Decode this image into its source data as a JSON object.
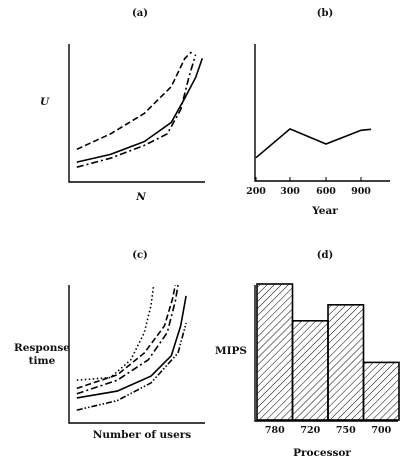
{
  "chart_data": [
    {
      "panel": "(a)",
      "type": "line",
      "xlabel": "N",
      "ylabel": "U",
      "xlim": [
        0,
        1
      ],
      "ylim": [
        0,
        1
      ],
      "series": [
        {
          "style": "dashed",
          "x": [
            0.05,
            0.3,
            0.55,
            0.75,
            0.85,
            0.9
          ],
          "y": [
            0.24,
            0.36,
            0.52,
            0.73,
            0.95,
            1.0
          ]
        },
        {
          "style": "solid",
          "x": [
            0.05,
            0.3,
            0.55,
            0.75,
            0.85,
            0.93,
            0.98
          ],
          "y": [
            0.14,
            0.2,
            0.3,
            0.45,
            0.64,
            0.8,
            0.95
          ]
        },
        {
          "style": "dashdot",
          "x": [
            0.05,
            0.3,
            0.55,
            0.72,
            0.82,
            0.88,
            0.93
          ],
          "y": [
            0.1,
            0.17,
            0.27,
            0.36,
            0.55,
            0.8,
            0.98
          ]
        }
      ]
    },
    {
      "panel": "(b)",
      "type": "line",
      "xlabel": "Year",
      "ylabel": "",
      "categories": [
        "200",
        "300",
        "600",
        "900"
      ],
      "series": [
        {
          "style": "solid",
          "values": [
            0.17,
            0.38,
            0.27,
            0.37
          ]
        }
      ],
      "ylim": [
        0,
        1
      ]
    },
    {
      "panel": "(c)",
      "type": "line",
      "xlabel": "Number of users",
      "ylabel": "Response time",
      "xlim": [
        0,
        1
      ],
      "ylim": [
        0,
        1
      ],
      "series": [
        {
          "style": "dotted",
          "x": [
            0.05,
            0.3,
            0.45,
            0.55,
            0.6,
            0.62
          ],
          "y": [
            0.3,
            0.32,
            0.45,
            0.65,
            0.85,
            1.0
          ]
        },
        {
          "style": "dashed",
          "x": [
            0.05,
            0.35,
            0.55,
            0.7,
            0.76,
            0.78
          ],
          "y": [
            0.24,
            0.34,
            0.5,
            0.7,
            0.9,
            1.0
          ]
        },
        {
          "style": "dashdot",
          "x": [
            0.05,
            0.35,
            0.58,
            0.72,
            0.78,
            0.8
          ],
          "y": [
            0.2,
            0.3,
            0.45,
            0.65,
            0.88,
            1.0
          ]
        },
        {
          "style": "solid",
          "x": [
            0.05,
            0.35,
            0.6,
            0.75,
            0.82,
            0.86
          ],
          "y": [
            0.17,
            0.22,
            0.33,
            0.48,
            0.7,
            0.92
          ]
        },
        {
          "style": "dashdotdot",
          "x": [
            0.05,
            0.35,
            0.6,
            0.8,
            0.86
          ],
          "y": [
            0.08,
            0.15,
            0.28,
            0.5,
            0.72
          ]
        }
      ]
    },
    {
      "panel": "(d)",
      "type": "bar",
      "xlabel": "Processor",
      "ylabel": "MIPS",
      "categories": [
        "780",
        "720",
        "750",
        "700"
      ],
      "values": [
        0.85,
        0.62,
        0.72,
        0.36
      ],
      "ylim": [
        0,
        1
      ],
      "fill": "hatched"
    }
  ]
}
